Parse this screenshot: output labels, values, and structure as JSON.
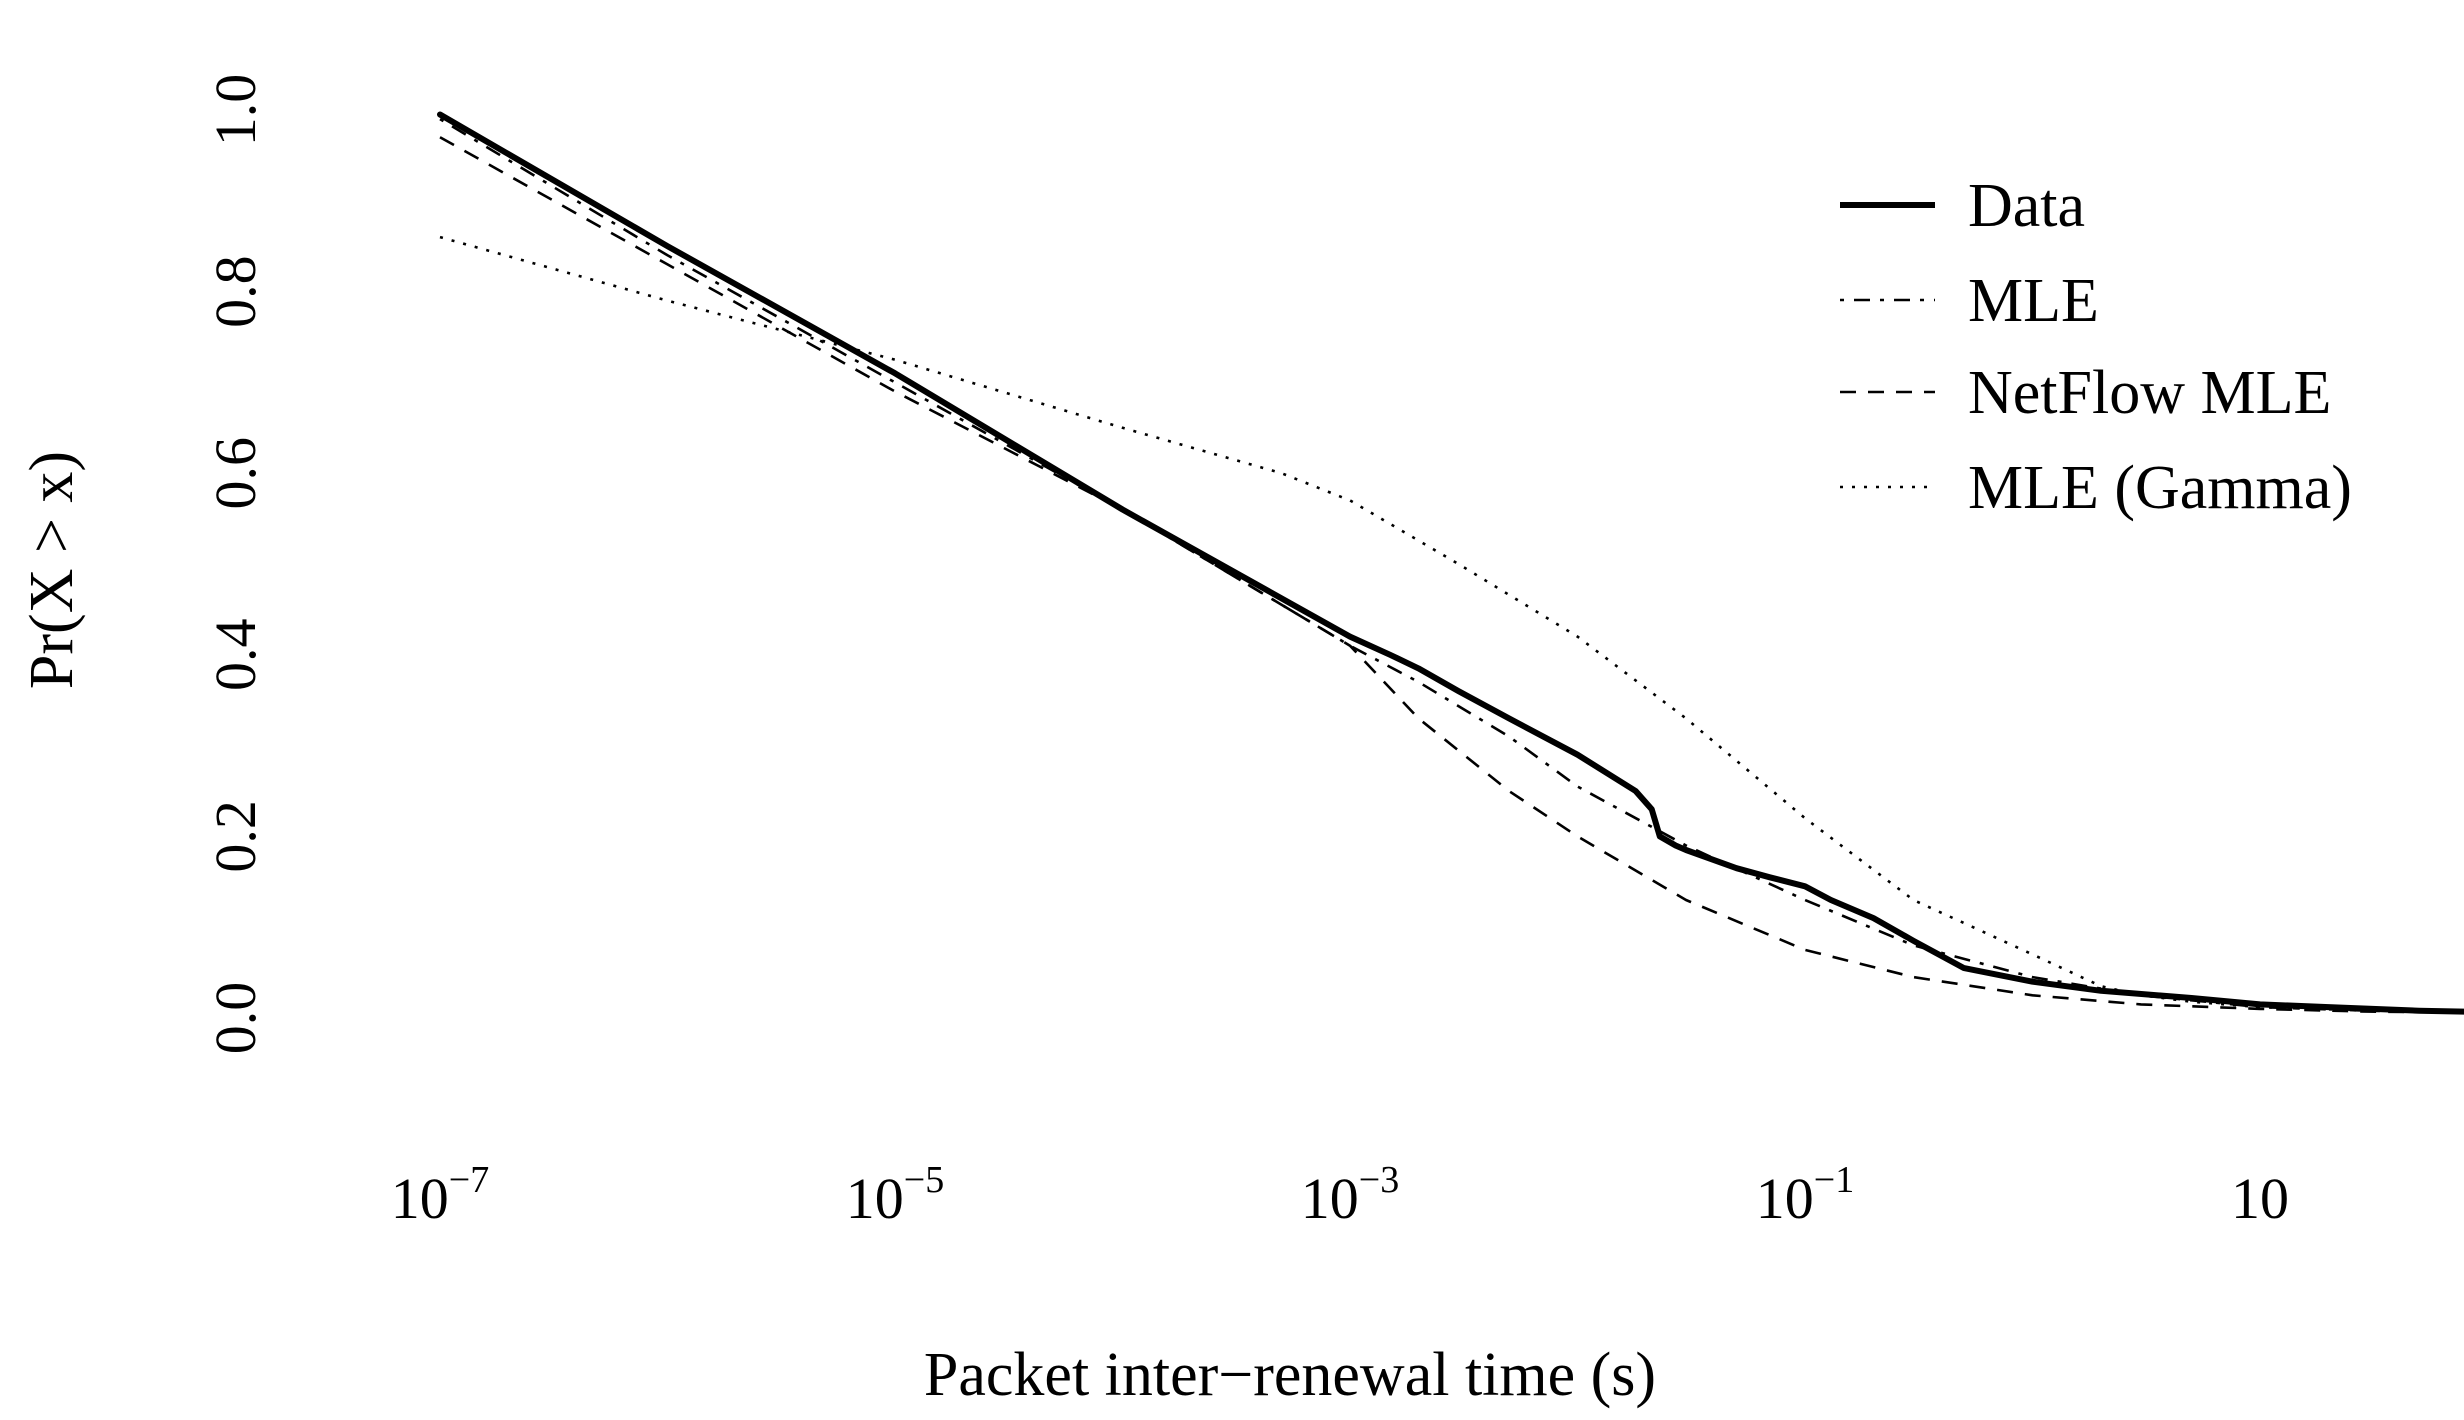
{
  "chart_data": {
    "type": "line",
    "xlabel": "Packet inter−renewal time (s)",
    "ylabel": "Pr(X > x)",
    "x_scale": "log10",
    "xlim": [
      1e-07,
      300
    ],
    "ylim": [
      0,
      1
    ],
    "grid": false,
    "legend_position": "top-right",
    "x_ticks": [
      {
        "value": 1e-07,
        "base": "10",
        "exp": "−7",
        "label": ""
      },
      {
        "value": 1e-05,
        "base": "10",
        "exp": "−5",
        "label": ""
      },
      {
        "value": 0.001,
        "base": "10",
        "exp": "−3",
        "label": ""
      },
      {
        "value": 0.1,
        "base": "10",
        "exp": "−1",
        "label": ""
      },
      {
        "value": 10,
        "base": "",
        "exp": "",
        "label": "10"
      }
    ],
    "y_ticks": [
      {
        "value": 0.0,
        "label": "0.0"
      },
      {
        "value": 0.2,
        "label": "0.2"
      },
      {
        "value": 0.4,
        "label": "0.4"
      },
      {
        "value": 0.6,
        "label": "0.6"
      },
      {
        "value": 0.8,
        "label": "0.8"
      },
      {
        "value": 1.0,
        "label": "1.0"
      }
    ],
    "series": [
      {
        "name": "Data",
        "style": "solid-thick",
        "x": [
          1e-07,
          1e-06,
          1e-05,
          0.0001,
          0.001,
          0.0015,
          0.002,
          0.003,
          0.005,
          0.01,
          0.018,
          0.0212,
          0.023,
          0.027,
          0.03,
          0.05,
          0.07,
          0.1,
          0.13,
          0.2,
          0.3,
          0.5,
          1,
          2,
          5,
          10,
          20,
          50,
          200
        ],
        "y": [
          0.995,
          0.85,
          0.71,
          0.56,
          0.42,
          0.4,
          0.385,
          0.36,
          0.33,
          0.29,
          0.25,
          0.23,
          0.2,
          0.19,
          0.185,
          0.165,
          0.155,
          0.145,
          0.13,
          0.11,
          0.085,
          0.055,
          0.04,
          0.03,
          0.022,
          0.015,
          0.012,
          0.008,
          0.005
        ]
      },
      {
        "name": "MLE",
        "style": "dash-dot",
        "x": [
          1e-07,
          1e-06,
          1e-05,
          0.0001,
          0.001,
          0.002,
          0.005,
          0.01,
          0.03,
          0.1,
          0.3,
          1,
          3,
          10,
          30,
          200
        ],
        "y": [
          0.99,
          0.84,
          0.7,
          0.56,
          0.41,
          0.37,
          0.31,
          0.255,
          0.19,
          0.13,
          0.08,
          0.045,
          0.025,
          0.012,
          0.008,
          0.005
        ]
      },
      {
        "name": "NetFlow MLE",
        "style": "dashed",
        "x": [
          1e-07,
          1e-06,
          1e-05,
          0.0001,
          0.001,
          0.002,
          0.005,
          0.01,
          0.03,
          0.1,
          0.3,
          1,
          3,
          10,
          30,
          200
        ],
        "y": [
          0.97,
          0.83,
          0.69,
          0.56,
          0.41,
          0.33,
          0.25,
          0.2,
          0.13,
          0.075,
          0.045,
          0.025,
          0.015,
          0.01,
          0.007,
          0.005
        ]
      },
      {
        "name": "MLE (Gamma)",
        "style": "dotted",
        "x": [
          1e-07,
          1e-06,
          1e-05,
          0.0001,
          0.0005,
          0.001,
          0.003,
          0.01,
          0.03,
          0.1,
          0.3,
          1,
          2,
          3,
          5,
          10,
          30,
          200
        ],
        "y": [
          0.86,
          0.79,
          0.725,
          0.65,
          0.6,
          0.57,
          0.5,
          0.42,
          0.33,
          0.22,
          0.13,
          0.07,
          0.035,
          0.025,
          0.018,
          0.012,
          0.008,
          0.005
        ]
      }
    ]
  }
}
